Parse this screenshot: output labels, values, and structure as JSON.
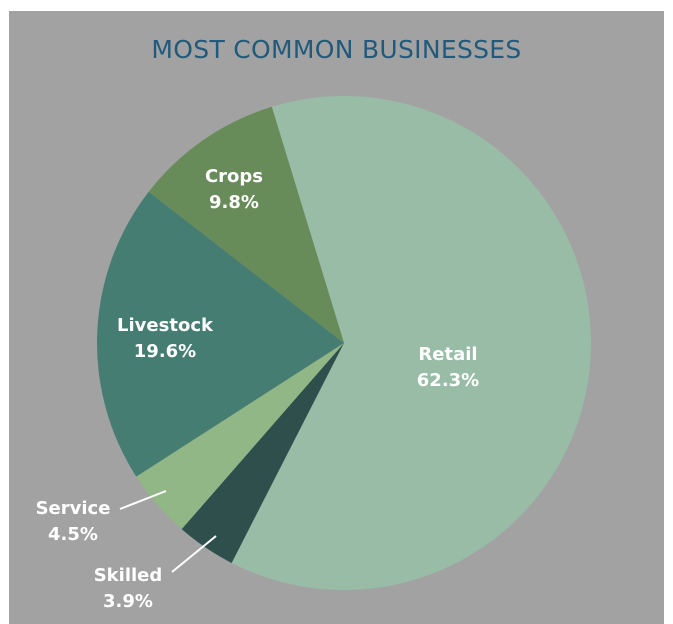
{
  "chart_data": {
    "type": "pie",
    "title": "MOST COMMON BUSINESSES",
    "slices": [
      {
        "label": "Retail",
        "value": 62.3,
        "value_label": "62.3%",
        "color": "#98bca6"
      },
      {
        "label": "Skilled",
        "value": 3.9,
        "value_label": "3.9%",
        "color": "#2e4f4b"
      },
      {
        "label": "Service",
        "value": 4.5,
        "value_label": "4.5%",
        "color": "#91b786"
      },
      {
        "label": "Livestock",
        "value": 19.6,
        "value_label": "19.6%",
        "color": "#467d73"
      },
      {
        "label": "Crops",
        "value": 9.8,
        "value_label": "9.8%",
        "color": "#678c59"
      }
    ],
    "colors": {
      "background": "#a2a2a2",
      "title": "#225a7c",
      "label": "#ffffff"
    }
  }
}
